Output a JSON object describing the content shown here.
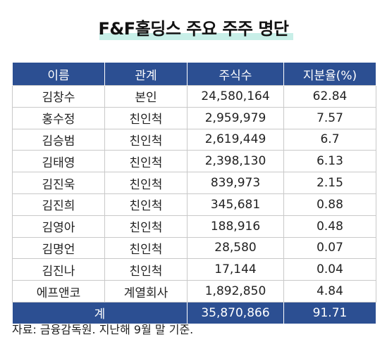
{
  "title": "F&F홀딩스 주요 주주 명단",
  "table": {
    "headers": [
      "이름",
      "관계",
      "주식수",
      "지분율(%)"
    ],
    "rows": [
      {
        "name": "김창수",
        "relation": "본인",
        "shares": "24,580,164",
        "pct": "62.84"
      },
      {
        "name": "홍수정",
        "relation": "친인척",
        "shares": "2,959,979",
        "pct": "7.57"
      },
      {
        "name": "김승범",
        "relation": "친인척",
        "shares": "2,619,449",
        "pct": "6.7"
      },
      {
        "name": "김태영",
        "relation": "친인척",
        "shares": "2,398,130",
        "pct": "6.13"
      },
      {
        "name": "김진욱",
        "relation": "친인척",
        "shares": "839,973",
        "pct": "2.15"
      },
      {
        "name": "김진희",
        "relation": "친인척",
        "shares": "345,681",
        "pct": "0.88"
      },
      {
        "name": "김영아",
        "relation": "친인척",
        "shares": "188,916",
        "pct": "0.48"
      },
      {
        "name": "김명언",
        "relation": "친인척",
        "shares": "28,580",
        "pct": "0.07"
      },
      {
        "name": "김진나",
        "relation": "친인척",
        "shares": "17,144",
        "pct": "0.04"
      },
      {
        "name": "에프앤코",
        "relation": "계열회사",
        "shares": "1,892,850",
        "pct": "4.84"
      }
    ],
    "total": {
      "label": "계",
      "shares": "35,870,866",
      "pct": "91.71"
    }
  },
  "source": "자료: 금융감독원. 지난해 9월 말 기준.",
  "colors": {
    "header_bg": "#2c4f92",
    "title_highlight": "#c8efe8"
  }
}
